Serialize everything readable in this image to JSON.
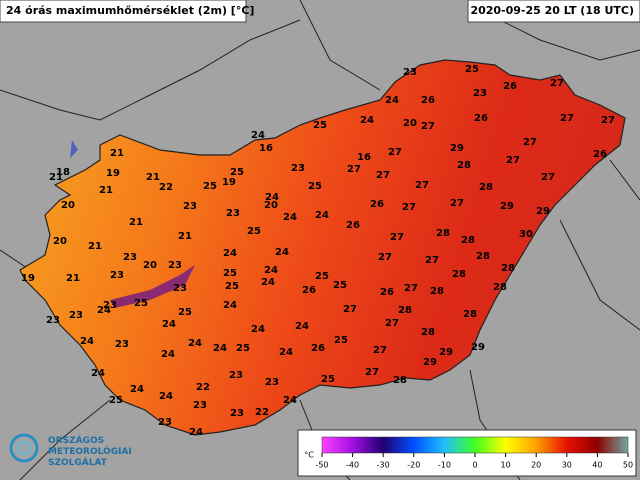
{
  "title": "24 órás maximumhőmérséklet (2m) [°C]",
  "timestamp": "2020-09-25 20 LT (18 UTC)",
  "station_values": [
    23,
    25,
    24,
    26,
    23,
    26,
    27,
    24,
    20,
    27,
    26,
    27,
    27,
    24,
    25,
    16,
    27,
    29,
    27,
    26,
    16,
    21,
    18,
    21,
    19,
    21,
    23,
    25,
    28,
    27,
    27,
    27,
    27,
    28,
    27,
    21,
    22,
    25,
    19,
    25,
    24,
    20,
    23,
    23,
    20,
    24,
    24,
    26,
    27,
    27,
    29,
    29,
    21,
    25,
    26,
    27,
    28,
    28,
    30,
    20,
    21,
    21,
    23,
    24,
    27,
    27,
    28,
    28,
    19,
    21,
    20,
    24,
    24,
    23,
    23,
    25,
    25,
    28,
    23,
    25,
    26,
    25,
    26,
    27,
    28,
    28,
    23,
    25,
    24,
    25,
    24,
    24,
    27,
    28,
    28,
    23,
    23,
    24,
    27,
    24,
    24,
    28,
    24,
    23,
    24,
    25,
    24,
    24,
    26,
    25,
    27,
    29,
    29,
    24,
    24,
    23,
    23,
    25,
    27,
    29,
    28,
    24,
    22,
    25,
    24,
    23,
    24,
    23,
    23,
    22,
    24
  ],
  "colorbar": {
    "unit": "°C",
    "lim": [
      -50,
      50
    ],
    "ticks": [
      -50,
      -40,
      -30,
      -20,
      -10,
      0,
      10,
      20,
      30,
      40,
      50
    ]
  },
  "logo": [
    "ORSZÁGOS",
    "METEOROLÓGIAI",
    "SZOLGÁLAT"
  ]
}
